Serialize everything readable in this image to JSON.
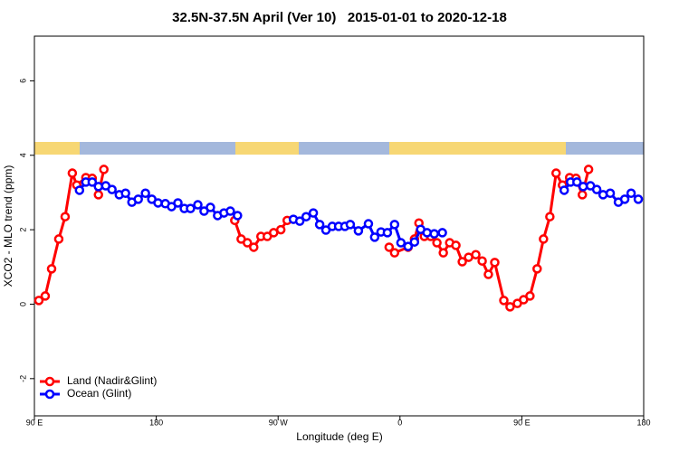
{
  "chart_data": {
    "type": "line",
    "title": "32.5N-37.5N April (Ver 10)   2015-01-01 to 2020-12-18",
    "x_label": "Longitude (deg E)",
    "y_label": "XCO2 - MLO trend (ppm)",
    "xlim": [
      90,
      540
    ],
    "xticks": [
      {
        "value": 90,
        "label": "90 E"
      },
      {
        "value": 180,
        "label": "180"
      },
      {
        "value": 270,
        "label": "90 W"
      },
      {
        "value": 360,
        "label": "0"
      },
      {
        "value": 450,
        "label": "90 E"
      },
      {
        "value": 540,
        "label": "180"
      }
    ],
    "ylim": [
      -3.0,
      7.2
    ],
    "yticks": [
      -2,
      0,
      2,
      4,
      6
    ],
    "legend": "bottom-left",
    "series": [
      {
        "name": "Land (Nadir&Glint)",
        "color": "#ff0000",
        "x": [
          93.3,
          98,
          102.7,
          108,
          112.7,
          118,
          121.3,
          128,
          132.7,
          137.3,
          141.3,
          null,
          238,
          242.7,
          247.3,
          252,
          257.3,
          262,
          266.7,
          272,
          276.7,
          null,
          352,
          356,
          366,
          370.7,
          374,
          378,
          382.7,
          387.3,
          392,
          396.7,
          401.3,
          406,
          410.7,
          416,
          420.7,
          425.3,
          430,
          436.7,
          441.3,
          446.7,
          451.3,
          456,
          461.3,
          466,
          470.7,
          475.3,
          480,
          485.3,
          490,
          494.7,
          499.3
        ],
        "values": [
          0.1,
          0.22,
          0.95,
          1.75,
          2.35,
          3.52,
          3.2,
          3.4,
          3.38,
          2.94,
          3.62,
          null,
          2.25,
          1.75,
          1.65,
          1.53,
          1.82,
          1.82,
          1.92,
          2.0,
          2.25,
          null,
          1.53,
          1.38,
          1.53,
          1.75,
          2.18,
          1.82,
          1.82,
          1.65,
          1.38,
          1.65,
          1.58,
          1.14,
          1.26,
          1.33,
          1.16,
          0.8,
          1.12,
          0.1,
          -0.07,
          0.02,
          0.12,
          0.22,
          0.95,
          1.75,
          2.35,
          3.52,
          3.2,
          3.4,
          3.38,
          2.94,
          3.62
        ]
      },
      {
        "name": "Ocean (Glint)",
        "color": "#0000ff",
        "x": [
          123.3,
          128,
          132.7,
          137.3,
          142.7,
          147.3,
          152.7,
          157.3,
          162,
          166.7,
          172,
          176.7,
          181.3,
          186.7,
          191.3,
          196,
          200.7,
          205.3,
          210.7,
          215.3,
          220,
          225.3,
          230,
          234.7,
          240,
          null,
          281.3,
          286,
          290.7,
          296,
          300.7,
          305.3,
          310,
          314.7,
          319.3,
          323.3,
          329.3,
          336.7,
          341.3,
          346,
          350.7,
          356,
          360.7,
          366,
          370.7,
          375.3,
          380,
          385.3,
          391.3,
          null,
          481.3,
          486,
          490.7,
          495.3,
          500.7,
          505.3,
          510,
          515.3,
          521.3,
          526,
          530.7,
          536
        ],
        "values": [
          3.06,
          3.28,
          3.28,
          3.16,
          3.18,
          3.08,
          2.94,
          2.98,
          2.74,
          2.82,
          2.98,
          2.82,
          2.72,
          2.7,
          2.62,
          2.72,
          2.57,
          2.57,
          2.67,
          2.5,
          2.6,
          2.38,
          2.45,
          2.5,
          2.38,
          null,
          2.28,
          2.23,
          2.35,
          2.45,
          2.14,
          1.99,
          2.09,
          2.09,
          2.09,
          2.14,
          1.97,
          2.16,
          1.8,
          1.94,
          1.92,
          2.14,
          1.65,
          1.55,
          1.67,
          2.01,
          1.92,
          1.89,
          1.92,
          null,
          3.06,
          3.28,
          3.28,
          3.16,
          3.18,
          3.08,
          2.94,
          2.98,
          2.74,
          2.82,
          2.98,
          2.82
        ]
      }
    ]
  }
}
